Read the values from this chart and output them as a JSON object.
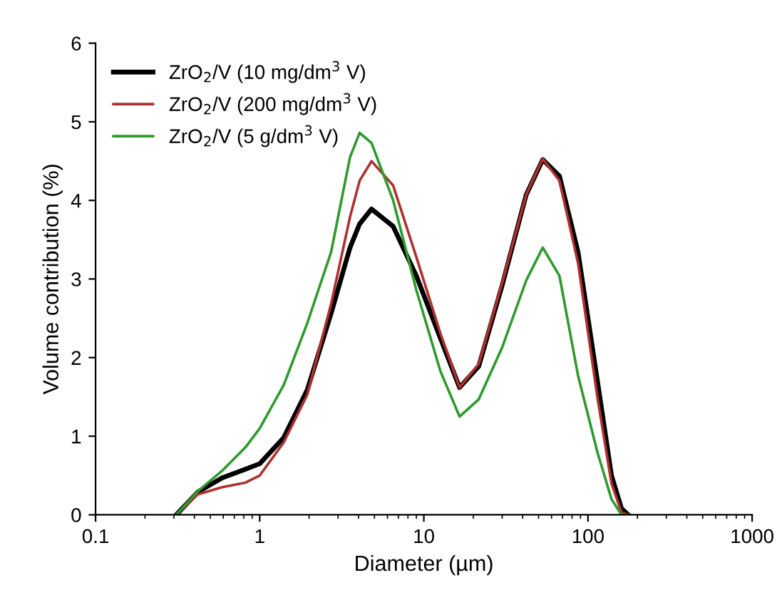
{
  "chart_data": {
    "type": "line",
    "xlabel": "Diameter (µm)",
    "ylabel": "Volume contribution (%)",
    "log": "x",
    "xlim": [
      0.1,
      1000
    ],
    "xticks": [
      0.1,
      1,
      10,
      100,
      1000
    ],
    "ylim": [
      0,
      6
    ],
    "yticks": [
      0,
      1,
      2,
      3,
      4,
      5,
      6
    ],
    "grid": false,
    "legend": "top left",
    "marker": "none",
    "line_style": "solid",
    "x": [
      0.31,
      0.42,
      0.59,
      0.82,
      1.0,
      1.4,
      1.95,
      2.72,
      3.55,
      4.06,
      4.8,
      6.5,
      9.0,
      12.6,
      16.5,
      21.6,
      30,
      42,
      53,
      67,
      87,
      114,
      139,
      160,
      176
    ],
    "series": [
      {
        "name": "ZrO$_{2}$/V (10 mg/dm$^{3}$ V)",
        "color": "#000000",
        "values": [
          0,
          0.29,
          0.47,
          0.58,
          0.65,
          0.98,
          1.59,
          2.56,
          3.4,
          3.7,
          3.89,
          3.67,
          3.04,
          2.25,
          1.62,
          1.89,
          2.92,
          4.07,
          4.52,
          4.31,
          3.34,
          1.71,
          0.5,
          0.08,
          0
        ]
      },
      {
        "name": "ZrO$_{2}$/V (200 mg/dm$^{3}$ V)",
        "color": "#b03030",
        "values": [
          0,
          0.26,
          0.35,
          0.41,
          0.5,
          0.92,
          1.53,
          2.68,
          3.79,
          4.25,
          4.5,
          4.19,
          3.28,
          2.31,
          1.62,
          1.92,
          2.95,
          4.07,
          4.53,
          4.25,
          3.2,
          1.5,
          0.4,
          0.03,
          0
        ]
      },
      {
        "name": "ZrO$_{2}$/V (5 g/dm$^{3}$ V)",
        "color": "#2e9a2e",
        "values": [
          0,
          0.3,
          0.56,
          0.86,
          1.1,
          1.65,
          2.44,
          3.34,
          4.55,
          4.86,
          4.73,
          4.0,
          2.86,
          1.83,
          1.25,
          1.47,
          2.13,
          2.98,
          3.4,
          3.04,
          1.77,
          0.8,
          0.2,
          0,
          0
        ]
      }
    ]
  }
}
